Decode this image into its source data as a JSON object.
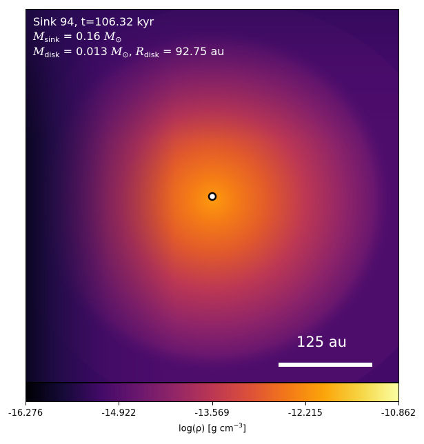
{
  "chart_data": {
    "type": "heatmap",
    "title": "",
    "annotations": {
      "sink_line": "Sink 94, t=106.32 kyr",
      "msink_sym": "M",
      "msink_sub": "sink",
      "msink_val": " = 0.16 ",
      "msun_sym": "M",
      "msun_sub": "⊙",
      "mdisk_sym": "M",
      "mdisk_sub": "disk",
      "mdisk_val": " = 0.013 ",
      "rdisk_sym": "R",
      "rdisk_sub": "disk",
      "rdisk_val": " = 92.75 au"
    },
    "scale_bar": {
      "label": "125 au",
      "length_au": 125
    },
    "colorbar": {
      "colormap": "inferno",
      "label_prefix": "log(ρ) [g cm",
      "label_exp": "−3",
      "label_suffix": "]",
      "range": [
        -16.276,
        -10.862
      ],
      "ticks": [
        "-16.276",
        "-14.922",
        "-13.569",
        "-12.215",
        "-10.862"
      ],
      "tick_values": [
        -16.276,
        -14.922,
        -13.569,
        -12.215,
        -10.862
      ]
    },
    "sink_marker": {
      "x_frac": 0.5,
      "y_frac": 0.5,
      "fill": "#ffffff",
      "edge": "#000000"
    },
    "density_field": {
      "peak_log_rho": -11.5,
      "background_log_rho": -15.3,
      "min_log_rho": -16.276
    }
  }
}
